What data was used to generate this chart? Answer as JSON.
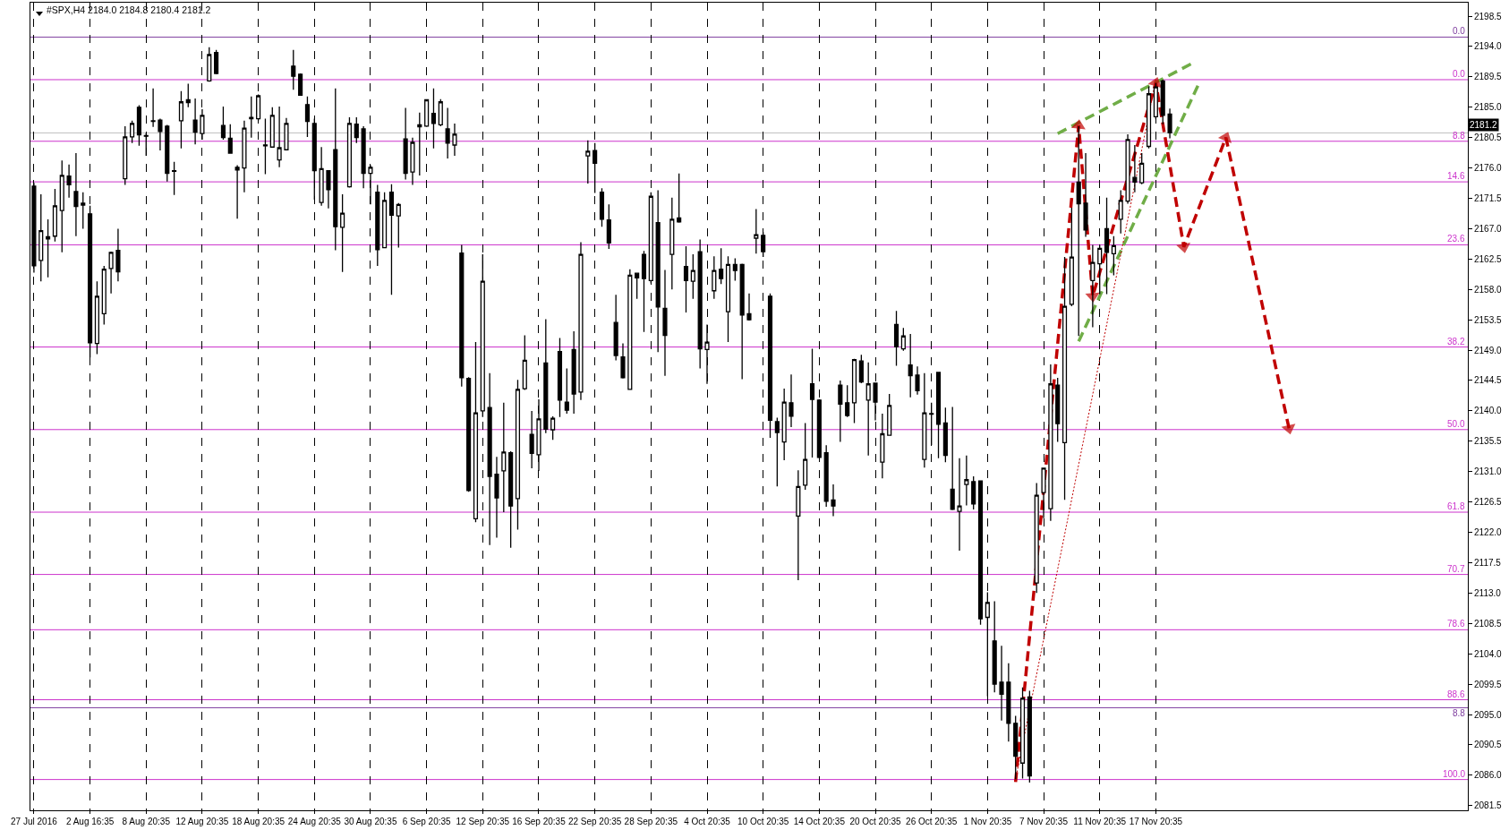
{
  "chart_data": {
    "type": "candlestick",
    "title": "#SPX,H4 2184.0 2184.8 2180.4 2181.2",
    "color": "#000000",
    "categories": [
      "27 Jul 2016",
      null,
      null,
      null,
      null,
      null,
      null,
      null,
      "2 Aug 16:35",
      null,
      null,
      null,
      null,
      null,
      null,
      null,
      "8 Aug 20:35",
      null,
      null,
      null,
      null,
      null,
      null,
      null,
      "12 Aug 20:35",
      null,
      null,
      null,
      null,
      null,
      null,
      null,
      "18 Aug 20:35",
      null,
      null,
      null,
      null,
      null,
      null,
      null,
      "24 Aug 20:35",
      null,
      null,
      null,
      null,
      null,
      null,
      null,
      "30 Aug 20:35",
      null,
      null,
      null,
      null,
      null,
      null,
      null,
      "6 Sep 20:35",
      null,
      null,
      null,
      null,
      null,
      null,
      null,
      "12 Sep 20:35",
      null,
      null,
      null,
      null,
      null,
      null,
      null,
      "16 Sep 20:35",
      null,
      null,
      null,
      null,
      null,
      null,
      null,
      "22 Sep 20:35",
      null,
      null,
      null,
      null,
      null,
      null,
      null,
      "28 Sep 20:35",
      null,
      null,
      null,
      null,
      null,
      null,
      null,
      "4 Oct 20:35",
      null,
      null,
      null,
      null,
      null,
      null,
      null,
      "10 Oct 20:35",
      null,
      null,
      null,
      null,
      null,
      null,
      null,
      "14 Oct 20:35",
      null,
      null,
      null,
      null,
      null,
      null,
      null,
      "20 Oct 20:35",
      null,
      null,
      null,
      null,
      null,
      null,
      null,
      "26 Oct 20:35",
      null,
      null,
      null,
      null,
      null,
      null,
      null,
      "1 Nov 20:35",
      null,
      null,
      null,
      null,
      null,
      null,
      null,
      "7 Nov 20:35",
      null,
      null,
      null,
      null,
      null,
      null,
      null,
      "11 Nov 20:35",
      null,
      null,
      null,
      null,
      null,
      null,
      null,
      "17 Nov 20:35",
      null,
      null,
      null,
      null,
      null,
      null,
      null,
      null,
      null,
      null,
      null,
      null,
      null,
      null,
      null,
      null,
      null,
      null,
      null,
      null,
      null,
      null,
      null,
      null,
      null,
      null,
      null,
      null,
      null,
      null,
      null,
      null,
      null,
      null,
      null,
      null,
      null,
      null,
      null,
      null,
      null,
      null,
      null,
      null
    ],
    "ohlc": [
      [
        2173.3,
        2173.8,
        2160.5,
        2161.5
      ],
      [
        2162.3,
        2172.1,
        2159.2,
        2166.7
      ],
      [
        2165.5,
        2168.4,
        2159.8,
        2165.8
      ],
      [
        2165.9,
        2172.9,
        2165.1,
        2170.4
      ],
      [
        2169.7,
        2177.1,
        2163.5,
        2174.9
      ],
      [
        2174.8,
        2176.5,
        2171.6,
        2173.5
      ],
      [
        2172.5,
        2178.2,
        2165.9,
        2170.3
      ],
      [
        2170.5,
        2172.4,
        2167.0,
        2170.8
      ],
      [
        2169.2,
        2170.4,
        2147.9,
        2150.1
      ],
      [
        2150.0,
        2159.2,
        2148.4,
        2157.0
      ],
      [
        2154.4,
        2161.5,
        2152.8,
        2161.0
      ],
      [
        2161.1,
        2163.6,
        2157.4,
        2163.5
      ],
      [
        2163.8,
        2167.0,
        2159.2,
        2160.6
      ],
      [
        2174.4,
        2182.2,
        2173.5,
        2180.6
      ],
      [
        2180.6,
        2183.0,
        2179.7,
        2182.6
      ],
      [
        2185.0,
        2185.3,
        2179.3,
        2180.9
      ],
      [
        2180.8,
        2181.2,
        2177.8,
        2180.7
      ],
      [
        2182.9,
        2187.8,
        2182.1,
        2183.0
      ],
      [
        2183.1,
        2183.3,
        2178.6,
        2181.4
      ],
      [
        2182.2,
        2182.4,
        2174.0,
        2175.2
      ],
      [
        2175.5,
        2176.9,
        2172.0,
        2175.6
      ],
      [
        2183.0,
        2187.4,
        2178.9,
        2185.8
      ],
      [
        2186.1,
        2188.5,
        2185.0,
        2185.7
      ],
      [
        2183.1,
        2186.3,
        2179.5,
        2181.3
      ],
      [
        2181.1,
        2184.7,
        2180.2,
        2183.8
      ],
      [
        2188.9,
        2193.9,
        2188.8,
        2192.8
      ],
      [
        2193.1,
        2193.5,
        2189.9,
        2190.0
      ],
      [
        2182.3,
        2185.1,
        2180.2,
        2180.5
      ],
      [
        2180.4,
        2182.5,
        2178.1,
        2178.2
      ],
      [
        2176.1,
        2176.4,
        2168.5,
        2175.7
      ],
      [
        2176.0,
        2183.0,
        2172.4,
        2181.9
      ],
      [
        2183.3,
        2186.6,
        2180.5,
        2183.5
      ],
      [
        2183.3,
        2186.9,
        2183.0,
        2186.7
      ],
      [
        2179.3,
        2183.3,
        2175.1,
        2179.4
      ],
      [
        2179.1,
        2185.0,
        2179.0,
        2183.8
      ],
      [
        2177.2,
        2185.1,
        2176.1,
        2179.0
      ],
      [
        2178.7,
        2183.4,
        2178.6,
        2182.6
      ],
      [
        2191.1,
        2193.5,
        2187.6,
        2189.6
      ],
      [
        2189.9,
        2190.0,
        2186.7,
        2186.8
      ],
      [
        2185.4,
        2186.6,
        2180.6,
        2182.9
      ],
      [
        2182.6,
        2183.3,
        2171.3,
        2175.6
      ],
      [
        2170.9,
        2179.1,
        2170.4,
        2175.9
      ],
      [
        2175.6,
        2175.7,
        2170.0,
        2172.8
      ],
      [
        2178.7,
        2187.8,
        2163.8,
        2167.3
      ],
      [
        2167.2,
        2172.1,
        2160.6,
        2169.3
      ],
      [
        2173.2,
        2183.5,
        2173.1,
        2182.6
      ],
      [
        2182.5,
        2183.5,
        2179.7,
        2180.5
      ],
      [
        2181.8,
        2182.2,
        2173.0,
        2175.2
      ],
      [
        2175.2,
        2176.4,
        2170.6,
        2176.1
      ],
      [
        2172.4,
        2173.5,
        2161.5,
        2163.9
      ],
      [
        2164.2,
        2172.4,
        2164.1,
        2171.2
      ],
      [
        2172.4,
        2173.6,
        2157.2,
        2169.0
      ],
      [
        2168.9,
        2170.8,
        2164.2,
        2170.6
      ],
      [
        2180.3,
        2184.9,
        2174.3,
        2175.2
      ],
      [
        2175.4,
        2180.5,
        2173.5,
        2179.8
      ],
      [
        2182.1,
        2184.2,
        2174.9,
        2182.4
      ],
      [
        2182.2,
        2186.2,
        2182.1,
        2186.1
      ],
      [
        2184.1,
        2187.8,
        2178.9,
        2182.6
      ],
      [
        2182.4,
        2186.2,
        2182.2,
        2185.8
      ],
      [
        2181.8,
        2184.9,
        2177.4,
        2179.7
      ],
      [
        2179.4,
        2182.6,
        2177.8,
        2181.0
      ],
      [
        2163.4,
        2164.6,
        2143.6,
        2144.9
      ],
      [
        2144.8,
        2145.0,
        2128.0,
        2128.2
      ],
      [
        2124.0,
        2150.2,
        2123.5,
        2139.7
      ],
      [
        2140.0,
        2163.2,
        2139.1,
        2159.2
      ],
      [
        2140.5,
        2145.6,
        2120.1,
        2130.3
      ],
      [
        2130.6,
        2133.2,
        2121.2,
        2127.1
      ],
      [
        2131.1,
        2141.2,
        2125.0,
        2133.9
      ],
      [
        2133.8,
        2134.0,
        2119.7,
        2125.9
      ],
      [
        2127.0,
        2144.6,
        2122.4,
        2143.2
      ],
      [
        2143.3,
        2151.2,
        2143.1,
        2147.5
      ],
      [
        2136.5,
        2140.0,
        2131.5,
        2133.7
      ],
      [
        2133.5,
        2141.7,
        2131.1,
        2138.8
      ],
      [
        2147.1,
        2153.6,
        2136.7,
        2137.3
      ],
      [
        2137.2,
        2139.2,
        2135.7,
        2138.9
      ],
      [
        2148.8,
        2150.8,
        2139.1,
        2141.6
      ],
      [
        2141.3,
        2146.3,
        2139.6,
        2140.1
      ],
      [
        2149.1,
        2151.8,
        2139.6,
        2142.5
      ],
      [
        2142.8,
        2165.0,
        2141.6,
        2163.2
      ],
      [
        2177.8,
        2180.1,
        2173.7,
        2178.5
      ],
      [
        2178.6,
        2179.7,
        2172.3,
        2176.7
      ],
      [
        2172.4,
        2173.0,
        2167.3,
        2168.4
      ],
      [
        2168.3,
        2170.6,
        2164.0,
        2164.9
      ],
      [
        2153.1,
        2157.2,
        2147.5,
        2148.2
      ],
      [
        2148.0,
        2150.0,
        2144.8,
        2144.9
      ],
      [
        2143.2,
        2161.0,
        2143.1,
        2160.1
      ],
      [
        2160.4,
        2160.5,
        2156.6,
        2159.7
      ],
      [
        2163.2,
        2163.7,
        2151.7,
        2159.6
      ],
      [
        2159.3,
        2172.4,
        2158.9,
        2171.8
      ],
      [
        2167.9,
        2172.7,
        2148.7,
        2155.4
      ],
      [
        2155.2,
        2160.9,
        2145.2,
        2151.2
      ],
      [
        2163.2,
        2171.6,
        2158.0,
        2168.4
      ],
      [
        2168.6,
        2175.2,
        2167.9,
        2168.0
      ],
      [
        2161.4,
        2164.4,
        2154.6,
        2159.3
      ],
      [
        2159.2,
        2163.2,
        2156.6,
        2160.8
      ],
      [
        2163.6,
        2165.4,
        2146.3,
        2149.2
      ],
      [
        2149.1,
        2152.8,
        2144.0,
        2150.2
      ],
      [
        2157.8,
        2162.9,
        2156.6,
        2160.8
      ],
      [
        2161.0,
        2164.1,
        2158.8,
        2159.6
      ],
      [
        2154.7,
        2162.9,
        2150.2,
        2161.7
      ],
      [
        2161.7,
        2162.6,
        2159.3,
        2160.8
      ],
      [
        2161.7,
        2161.8,
        2144.7,
        2154.2
      ],
      [
        2154.4,
        2157.4,
        2153.4,
        2153.5
      ],
      [
        2165.6,
        2169.9,
        2163.3,
        2166.1
      ],
      [
        2166.0,
        2166.5,
        2162.8,
        2163.6
      ],
      [
        2157.0,
        2157.4,
        2136.0,
        2138.6
      ],
      [
        2138.4,
        2139.0,
        2128.8,
        2136.8
      ],
      [
        2135.4,
        2143.3,
        2132.7,
        2141.3
      ],
      [
        2141.2,
        2145.4,
        2137.6,
        2139.2
      ],
      [
        2124.4,
        2131.2,
        2114.9,
        2128.8
      ],
      [
        2129.0,
        2138.2,
        2128.3,
        2132.8
      ],
      [
        2144.0,
        2149.2,
        2133.1,
        2141.7
      ],
      [
        2141.6,
        2141.7,
        2133.0,
        2133.1
      ],
      [
        2133.8,
        2134.9,
        2125.8,
        2126.6
      ],
      [
        2126.8,
        2129.1,
        2124.4,
        2125.9
      ],
      [
        2143.8,
        2144.5,
        2135.4,
        2141.0
      ],
      [
        2141.2,
        2143.8,
        2139.1,
        2139.3
      ],
      [
        2141.2,
        2147.7,
        2138.2,
        2147.6
      ],
      [
        2147.4,
        2148.3,
        2144.1,
        2144.3
      ],
      [
        2141.6,
        2147.2,
        2133.4,
        2144.0
      ],
      [
        2144.1,
        2144.2,
        2138.6,
        2141.3
      ],
      [
        2132.4,
        2139.6,
        2130.0,
        2136.6
      ],
      [
        2136.4,
        2142.5,
        2136.3,
        2140.8
      ],
      [
        2152.8,
        2154.8,
        2146.7,
        2149.5
      ],
      [
        2149.2,
        2152.3,
        2148.9,
        2151.1
      ],
      [
        2146.8,
        2151.4,
        2142.0,
        2145.2
      ],
      [
        2145.3,
        2146.6,
        2142.4,
        2143.0
      ],
      [
        2132.8,
        2145.6,
        2131.6,
        2139.7
      ],
      [
        2139.5,
        2141.2,
        2134.9,
        2139.6
      ],
      [
        2145.7,
        2145.8,
        2133.0,
        2138.0
      ],
      [
        2138.2,
        2140.5,
        2132.4,
        2133.4
      ],
      [
        2128.4,
        2140.6,
        2125.3,
        2125.4
      ],
      [
        2125.1,
        2133.0,
        2119.3,
        2125.9
      ],
      [
        2129.1,
        2133.4,
        2126.0,
        2129.8
      ],
      [
        2129.5,
        2130.3,
        2125.4,
        2126.2
      ],
      [
        2129.6,
        2129.7,
        2108.3,
        2109.2
      ],
      [
        2109.4,
        2113.1,
        2097.7,
        2111.6
      ],
      [
        2105.9,
        2111.8,
        2098.3,
        2099.5
      ],
      [
        2099.8,
        2105.2,
        2094.1,
        2098.0
      ],
      [
        2099.8,
        2102.6,
        2091.0,
        2093.7
      ],
      [
        2093.7,
        2094.8,
        2085.4,
        2088.8
      ],
      [
        2087.8,
        2099.0,
        2085.5,
        2097.4
      ],
      [
        2097.6,
        2098.5,
        2084.9,
        2085.9
      ],
      [
        2114.5,
        2129.3,
        2113.0,
        2127.5
      ],
      [
        2127.9,
        2131.6,
        2124.1,
        2131.5
      ],
      [
        2125.5,
        2146.9,
        2123.7,
        2144.0
      ],
      [
        2143.8,
        2144.9,
        2135.4,
        2138.1
      ],
      [
        2135.3,
        2162.8,
        2126.8,
        2155.5
      ],
      [
        2155.8,
        2170.1,
        2155.5,
        2162.8
      ],
      [
        2173.9,
        2182.2,
        2151.1,
        2170.7
      ],
      [
        2170.8,
        2178.2,
        2165.8,
        2166.8
      ],
      [
        2159.3,
        2164.6,
        2152.4,
        2162.0
      ],
      [
        2161.8,
        2164.6,
        2157.3,
        2164.1
      ],
      [
        2167.0,
        2171.6,
        2157.3,
        2163.5
      ],
      [
        2163.3,
        2165.9,
        2160.1,
        2164.5
      ],
      [
        2168.4,
        2172.7,
        2166.3,
        2171.2
      ],
      [
        2171.1,
        2181.0,
        2170.7,
        2180.2
      ],
      [
        2174.6,
        2179.4,
        2172.4,
        2173.9
      ],
      [
        2173.8,
        2178.2,
        2173.6,
        2176.7
      ],
      [
        2179.2,
        2188.1,
        2178.9,
        2187.0
      ],
      [
        2183.6,
        2188.6,
        2183.2,
        2188.0
      ],
      [
        2188.9,
        2189.1,
        2182.5,
        2183.8
      ],
      [
        2184.0,
        2184.8,
        2180.4,
        2181.2
      ],
      null,
      null,
      null,
      null,
      null,
      null,
      null,
      null,
      null,
      null,
      null,
      null,
      null,
      null,
      null,
      null,
      null,
      null,
      null,
      null,
      null,
      null,
      null,
      null,
      null,
      null,
      null,
      null,
      null,
      null,
      null,
      null,
      null,
      null,
      null,
      null,
      null,
      null,
      null,
      null,
      null,
      null
    ],
    "series": [
      {
        "type": "line",
        "color": "#70ad47",
        "line_style": "dashed",
        "values": [
          null,
          null,
          null,
          null,
          null,
          null,
          null,
          null,
          null,
          null,
          null,
          null,
          null,
          null,
          null,
          null,
          null,
          null,
          null,
          null,
          null,
          null,
          null,
          null,
          null,
          null,
          null,
          null,
          null,
          null,
          null,
          null,
          null,
          null,
          null,
          null,
          null,
          null,
          null,
          null,
          null,
          null,
          null,
          null,
          null,
          null,
          null,
          null,
          null,
          null,
          null,
          null,
          null,
          null,
          null,
          null,
          null,
          null,
          null,
          null,
          null,
          null,
          null,
          null,
          null,
          null,
          null,
          null,
          null,
          null,
          null,
          null,
          null,
          null,
          null,
          null,
          null,
          null,
          null,
          null,
          null,
          null,
          null,
          null,
          null,
          null,
          null,
          null,
          null,
          null,
          null,
          null,
          null,
          null,
          null,
          null,
          null,
          null,
          null,
          null,
          null,
          null,
          null,
          null,
          null,
          null,
          null,
          null,
          null,
          null,
          null,
          null,
          null,
          null,
          null,
          null,
          null,
          null,
          null,
          null,
          null,
          null,
          null,
          null,
          null,
          null,
          null,
          null,
          null,
          null,
          null,
          null,
          null,
          null,
          null,
          null,
          null,
          null,
          null,
          null,
          null,
          null,
          null,
          null,
          null,
          null,
          2181.1,
          null,
          null,
          null,
          null,
          null,
          null,
          null,
          null,
          null,
          null,
          null,
          null,
          null,
          null,
          null,
          null,
          null,
          null,
          2191.4,
          null,
          null,
          null,
          null,
          null,
          null,
          null,
          null,
          null,
          null,
          null,
          null,
          null,
          null,
          null,
          null,
          null,
          null,
          null,
          null,
          null,
          null,
          null,
          null,
          null,
          null,
          null,
          null,
          null,
          null,
          null,
          null,
          null,
          null,
          null,
          null,
          null,
          null,
          null
        ]
      },
      {
        "type": "line",
        "color": "#70ad47",
        "line_style": "dashed",
        "values": [
          null,
          null,
          null,
          null,
          null,
          null,
          null,
          null,
          null,
          null,
          null,
          null,
          null,
          null,
          null,
          null,
          null,
          null,
          null,
          null,
          null,
          null,
          null,
          null,
          null,
          null,
          null,
          null,
          null,
          null,
          null,
          null,
          null,
          null,
          null,
          null,
          null,
          null,
          null,
          null,
          null,
          null,
          null,
          null,
          null,
          null,
          null,
          null,
          null,
          null,
          null,
          null,
          null,
          null,
          null,
          null,
          null,
          null,
          null,
          null,
          null,
          null,
          null,
          null,
          null,
          null,
          null,
          null,
          null,
          null,
          null,
          null,
          null,
          null,
          null,
          null,
          null,
          null,
          null,
          null,
          null,
          null,
          null,
          null,
          null,
          null,
          null,
          null,
          null,
          null,
          null,
          null,
          null,
          null,
          null,
          null,
          null,
          null,
          null,
          null,
          null,
          null,
          null,
          null,
          null,
          null,
          null,
          null,
          null,
          null,
          null,
          null,
          null,
          null,
          null,
          null,
          null,
          null,
          null,
          null,
          null,
          null,
          null,
          null,
          null,
          null,
          null,
          null,
          null,
          null,
          null,
          null,
          null,
          null,
          null,
          null,
          null,
          null,
          null,
          null,
          null,
          null,
          null,
          null,
          null,
          null,
          null,
          null,
          null,
          2150.3,
          null,
          null,
          null,
          null,
          null,
          null,
          null,
          null,
          null,
          null,
          null,
          null,
          null,
          null,
          null,
          null,
          2188.2,
          null,
          null,
          null,
          null,
          null,
          null,
          null,
          null,
          null,
          null,
          null,
          null,
          null,
          null,
          null,
          null,
          null,
          null,
          null,
          null,
          null,
          null,
          null,
          null,
          null,
          null,
          null,
          null,
          null,
          null,
          null,
          null,
          null,
          null,
          null,
          null,
          null,
          null
        ]
      },
      {
        "type": "line",
        "color": "#c00000",
        "line_style": "dashed",
        "marker": "triangle",
        "values": [
          null,
          null,
          null,
          null,
          null,
          null,
          null,
          null,
          null,
          null,
          null,
          null,
          null,
          null,
          null,
          null,
          null,
          null,
          null,
          null,
          null,
          null,
          null,
          null,
          null,
          null,
          null,
          null,
          null,
          null,
          null,
          null,
          null,
          null,
          null,
          null,
          null,
          null,
          null,
          null,
          null,
          null,
          null,
          null,
          null,
          null,
          null,
          null,
          null,
          null,
          null,
          null,
          null,
          null,
          null,
          null,
          null,
          null,
          null,
          null,
          null,
          null,
          null,
          null,
          null,
          null,
          null,
          null,
          null,
          null,
          null,
          null,
          null,
          null,
          null,
          null,
          null,
          null,
          null,
          null,
          null,
          null,
          null,
          null,
          null,
          null,
          null,
          null,
          null,
          null,
          null,
          null,
          null,
          null,
          null,
          null,
          null,
          null,
          null,
          null,
          null,
          null,
          null,
          null,
          null,
          null,
          null,
          null,
          null,
          null,
          null,
          null,
          null,
          null,
          null,
          null,
          null,
          null,
          null,
          null,
          null,
          null,
          null,
          null,
          null,
          null,
          null,
          null,
          null,
          null,
          null,
          null,
          null,
          null,
          null,
          null,
          null,
          null,
          null,
          null,
          2085.0,
          null,
          null,
          null,
          null,
          null,
          null,
          null,
          null,
          2182.3,
          null,
          2157.0,
          null,
          null,
          null,
          null,
          null,
          null,
          null,
          null,
          2188.6,
          null,
          null,
          null,
          2164.3,
          null,
          null,
          null,
          null,
          null,
          2180.5,
          null,
          null,
          null,
          null,
          null,
          null,
          null,
          null,
          2137.4,
          null,
          null,
          null,
          null,
          null,
          null,
          null,
          null,
          null,
          null,
          null,
          null,
          null,
          null,
          null,
          null,
          null,
          null,
          null,
          null,
          null,
          null,
          null,
          null,
          null
        ]
      },
      {
        "type": "line",
        "color": "#c00000",
        "line_style": "dotted",
        "values": [
          null,
          null,
          null,
          null,
          null,
          null,
          null,
          null,
          null,
          null,
          null,
          null,
          null,
          null,
          null,
          null,
          null,
          null,
          null,
          null,
          null,
          null,
          null,
          null,
          null,
          null,
          null,
          null,
          null,
          null,
          null,
          null,
          null,
          null,
          null,
          null,
          null,
          null,
          null,
          null,
          null,
          null,
          null,
          null,
          null,
          null,
          null,
          null,
          null,
          null,
          null,
          null,
          null,
          null,
          null,
          null,
          null,
          null,
          null,
          null,
          null,
          null,
          null,
          null,
          null,
          null,
          null,
          null,
          null,
          null,
          null,
          null,
          null,
          null,
          null,
          null,
          null,
          null,
          null,
          null,
          null,
          null,
          null,
          null,
          null,
          null,
          null,
          null,
          null,
          null,
          null,
          null,
          null,
          null,
          null,
          null,
          null,
          null,
          null,
          null,
          null,
          null,
          null,
          null,
          null,
          null,
          null,
          null,
          null,
          null,
          null,
          null,
          null,
          null,
          null,
          null,
          null,
          null,
          null,
          null,
          null,
          null,
          null,
          null,
          null,
          null,
          null,
          null,
          null,
          null,
          null,
          null,
          null,
          null,
          null,
          null,
          null,
          null,
          null,
          null,
          2085.4,
          null,
          null,
          null,
          null,
          null,
          null,
          null,
          null,
          null,
          null,
          null,
          null,
          null,
          null,
          null,
          null,
          null,
          null,
          null,
          2189.1,
          null,
          null,
          null,
          null,
          null,
          null,
          null,
          null,
          null,
          null,
          null,
          null,
          null,
          null,
          null,
          null,
          null,
          null,
          null,
          null,
          null,
          null,
          null,
          null,
          null,
          null,
          null,
          null,
          null,
          null,
          null,
          null,
          null,
          null,
          null,
          null,
          null,
          null,
          null,
          null,
          null,
          null,
          null,
          null
        ]
      }
    ],
    "ylim": [
      2080.8,
      2200.5
    ],
    "yticks": [
      2081.5,
      {
        "value": 2086,
        "label": "2086.0"
      },
      2090.5,
      {
        "value": 2095,
        "label": "2095.0"
      },
      2099.5,
      {
        "value": 2104,
        "label": "2104.0"
      },
      2108.5,
      {
        "value": 2113,
        "label": "2113.0"
      },
      2117.5,
      {
        "value": 2122,
        "label": "2122.0"
      },
      2126.5,
      {
        "value": 2131,
        "label": "2131.0"
      },
      2135.5,
      {
        "value": 2140,
        "label": "2140.0"
      },
      2144.5,
      {
        "value": 2149,
        "label": "2149.0"
      },
      2153.5,
      {
        "value": 2158,
        "label": "2158.0"
      },
      2162.5,
      {
        "value": 2167,
        "label": "2167.0"
      },
      2171.5,
      {
        "value": 2176,
        "label": "2176.0"
      },
      2180.5,
      {
        "value": 2185,
        "label": "2185.0"
      },
      2189.5,
      {
        "value": 2194,
        "label": "2194.0"
      },
      2198.5
    ],
    "y2lim": [
      104.4,
      -11.0
    ],
    "grid": "x",
    "ref_lines": [
      {
        "axis": "y",
        "value": 2195.4,
        "color": "#8040a0"
      },
      {
        "axis": "y",
        "value": 2096.0,
        "color": "#8040a0"
      },
      {
        "axis": "y2",
        "value": 0,
        "label": "0.0",
        "color": "#cc33cc"
      },
      {
        "axis": "y2",
        "value": 8.8,
        "label": "8.8",
        "color": "#cc33cc"
      },
      {
        "axis": "y2",
        "value": 14.6,
        "label": "14.6",
        "color": "#cc33cc"
      },
      {
        "axis": "y2",
        "value": 23.6,
        "label": "23.6",
        "color": "#cc33cc"
      },
      {
        "axis": "y2",
        "value": 38.2,
        "label": "38.2",
        "color": "#cc33cc"
      },
      {
        "axis": "y2",
        "value": 50,
        "label": "50.0",
        "color": "#cc33cc"
      },
      {
        "axis": "y2",
        "value": 61.8,
        "label": "61.8",
        "color": "#cc33cc"
      },
      {
        "axis": "y2",
        "value": 70.7,
        "label": "70.7",
        "color": "#cc33cc"
      },
      {
        "axis": "y2",
        "value": 78.6,
        "label": "78.6",
        "color": "#cc33cc"
      },
      {
        "axis": "y2",
        "value": 88.6,
        "label": "88.6",
        "color": "#cc33cc"
      },
      {
        "axis": "y2",
        "value": 100,
        "label": "100.0",
        "color": "#cc33cc"
      },
      {
        "axis": "y",
        "value": 2181.2,
        "label": "2181.2",
        "color": "#c0c0c0"
      }
    ],
    "annotations": [
      "0.0",
      "8.8"
    ]
  }
}
